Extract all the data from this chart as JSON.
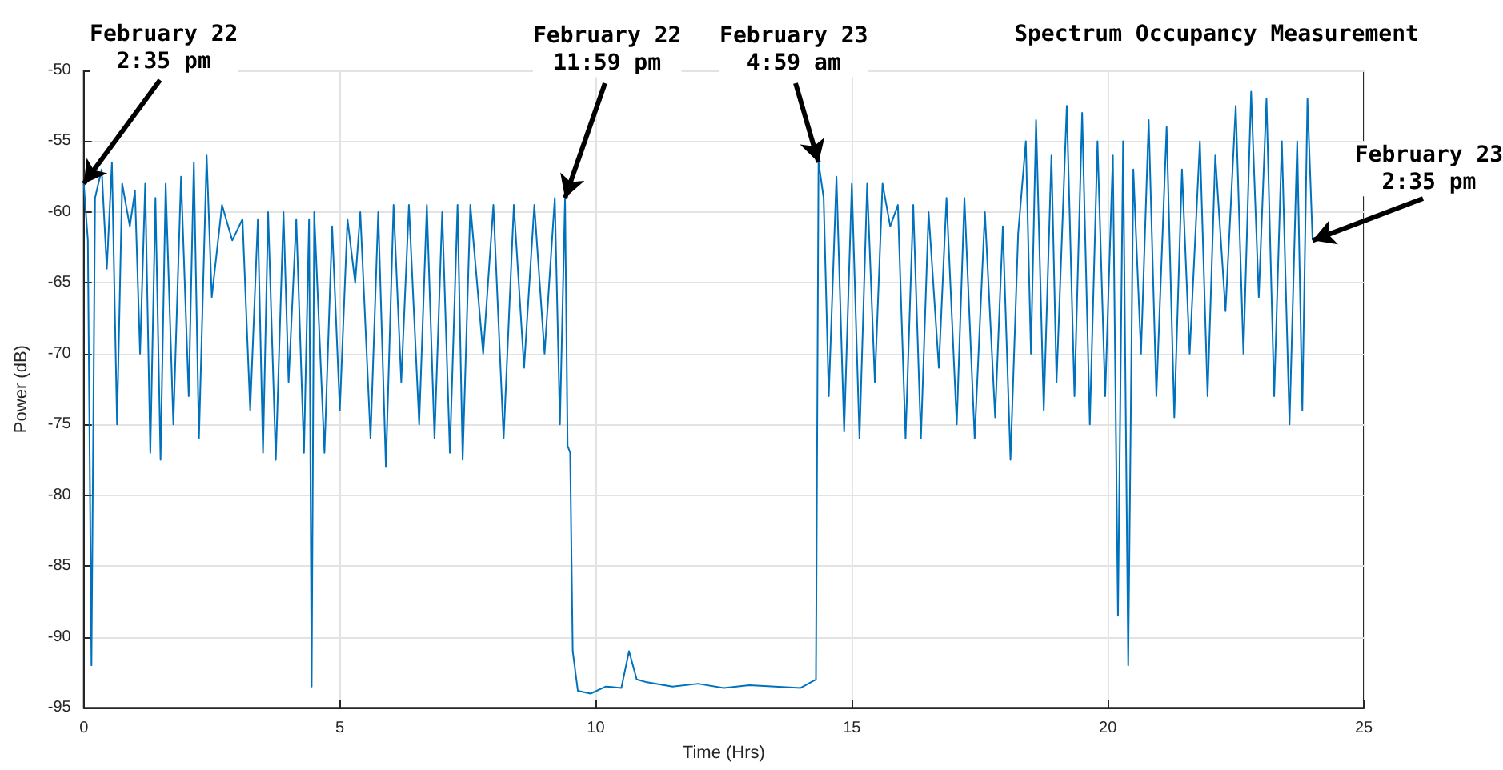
{
  "chart_data": {
    "type": "line",
    "title": "Spectrum Occupancy Measurement",
    "xlabel": "Time (Hrs)",
    "ylabel": "Power (dB)",
    "x": [
      0,
      0.08,
      0.15,
      0.22,
      0.35,
      0.45,
      0.55,
      0.65,
      0.75,
      0.9,
      1.0,
      1.1,
      1.2,
      1.3,
      1.4,
      1.5,
      1.6,
      1.75,
      1.9,
      2.05,
      2.15,
      2.25,
      2.4,
      2.5,
      2.7,
      2.9,
      3.1,
      3.25,
      3.4,
      3.5,
      3.6,
      3.75,
      3.9,
      4.0,
      4.15,
      4.3,
      4.4,
      4.45,
      4.5,
      4.7,
      4.85,
      5.0,
      5.15,
      5.3,
      5.4,
      5.6,
      5.75,
      5.9,
      6.05,
      6.2,
      6.35,
      6.55,
      6.7,
      6.85,
      7.0,
      7.15,
      7.3,
      7.4,
      7.55,
      7.8,
      8.0,
      8.2,
      8.4,
      8.6,
      8.8,
      9.0,
      9.2,
      9.3,
      9.4,
      9.45,
      9.5,
      9.55,
      9.65,
      9.9,
      10.2,
      10.5,
      10.65,
      10.8,
      11.0,
      11.5,
      12.0,
      12.5,
      13.0,
      13.5,
      14.0,
      14.3,
      14.35,
      14.45,
      14.55,
      14.7,
      14.85,
      15.0,
      15.15,
      15.3,
      15.45,
      15.6,
      15.75,
      15.9,
      16.05,
      16.2,
      16.35,
      16.5,
      16.7,
      16.85,
      17.05,
      17.2,
      17.4,
      17.6,
      17.8,
      17.95,
      18.1,
      18.25,
      18.4,
      18.5,
      18.6,
      18.75,
      18.9,
      19.0,
      19.2,
      19.35,
      19.5,
      19.65,
      19.8,
      19.95,
      20.1,
      20.2,
      20.3,
      20.4,
      20.5,
      20.65,
      20.8,
      20.95,
      21.15,
      21.3,
      21.45,
      21.6,
      21.8,
      21.95,
      22.1,
      22.3,
      22.5,
      22.65,
      22.8,
      22.95,
      23.1,
      23.25,
      23.4,
      23.55,
      23.7,
      23.8,
      23.9,
      24.0
    ],
    "series": [
      {
        "color": "#0072bd",
        "values": [
          -58,
          -62,
          -92,
          -59,
          -57,
          -64,
          -56.5,
          -75,
          -58,
          -61,
          -58.5,
          -70,
          -58,
          -77,
          -59,
          -77.5,
          -58,
          -75,
          -57.5,
          -73,
          -56.5,
          -76,
          -56,
          -66,
          -59.5,
          -62,
          -60.5,
          -74,
          -60.5,
          -77,
          -60,
          -77.5,
          -60,
          -72,
          -60.5,
          -77,
          -60.5,
          -93.5,
          -60,
          -77,
          -61,
          -74,
          -60.5,
          -65,
          -60,
          -76,
          -60,
          -78,
          -59.5,
          -72,
          -59.5,
          -75,
          -59.5,
          -76,
          -60,
          -77,
          -59.5,
          -77.5,
          -59.5,
          -70,
          -59.5,
          -76,
          -59.5,
          -71,
          -59.5,
          -70,
          -59,
          -75,
          -59,
          -76.5,
          -77,
          -91,
          -93.8,
          -94,
          -93.5,
          -93.6,
          -91,
          -93,
          -93.2,
          -93.5,
          -93.3,
          -93.6,
          -93.4,
          -93.5,
          -93.6,
          -93,
          -56.5,
          -59,
          -73,
          -57.5,
          -75.5,
          -58,
          -76,
          -58,
          -72,
          -58,
          -61,
          -59.5,
          -76,
          -59.5,
          -76,
          -60,
          -71,
          -59,
          -75,
          -59,
          -76,
          -60,
          -74.5,
          -61,
          -77.5,
          -61.5,
          -55,
          -70,
          -53.5,
          -74,
          -56,
          -72,
          -52.5,
          -73,
          -53,
          -75,
          -55,
          -73,
          -56,
          -88.5,
          -55,
          -92,
          -57,
          -70,
          -53.5,
          -73,
          -54,
          -74.5,
          -57,
          -70,
          -55,
          -73,
          -56,
          -67,
          -52.5,
          -70,
          -51.5,
          -66,
          -52,
          -73,
          -55,
          -75,
          -55,
          -74,
          -52,
          -62
        ]
      }
    ],
    "xlim": [
      0,
      25
    ],
    "xticks": [
      0,
      5,
      10,
      15,
      20,
      25
    ],
    "ylim": [
      -95,
      -50
    ],
    "yticks": [
      -95,
      -90,
      -85,
      -80,
      -75,
      -70,
      -65,
      -60,
      -55,
      -50
    ],
    "grid": true,
    "marker": "none",
    "line_style": "solid",
    "annotations": [
      {
        "text": "February 22\n2:35 pm",
        "x": 0,
        "y": -58
      },
      {
        "text": "February 22\n11:59 pm",
        "x": 9.4,
        "y": -59
      },
      {
        "text": "February 23\n4:59 am",
        "x": 14.35,
        "y": -56.5
      },
      {
        "text": "February 23\n2:35 pm",
        "x": 24.0,
        "y": -62
      }
    ]
  }
}
